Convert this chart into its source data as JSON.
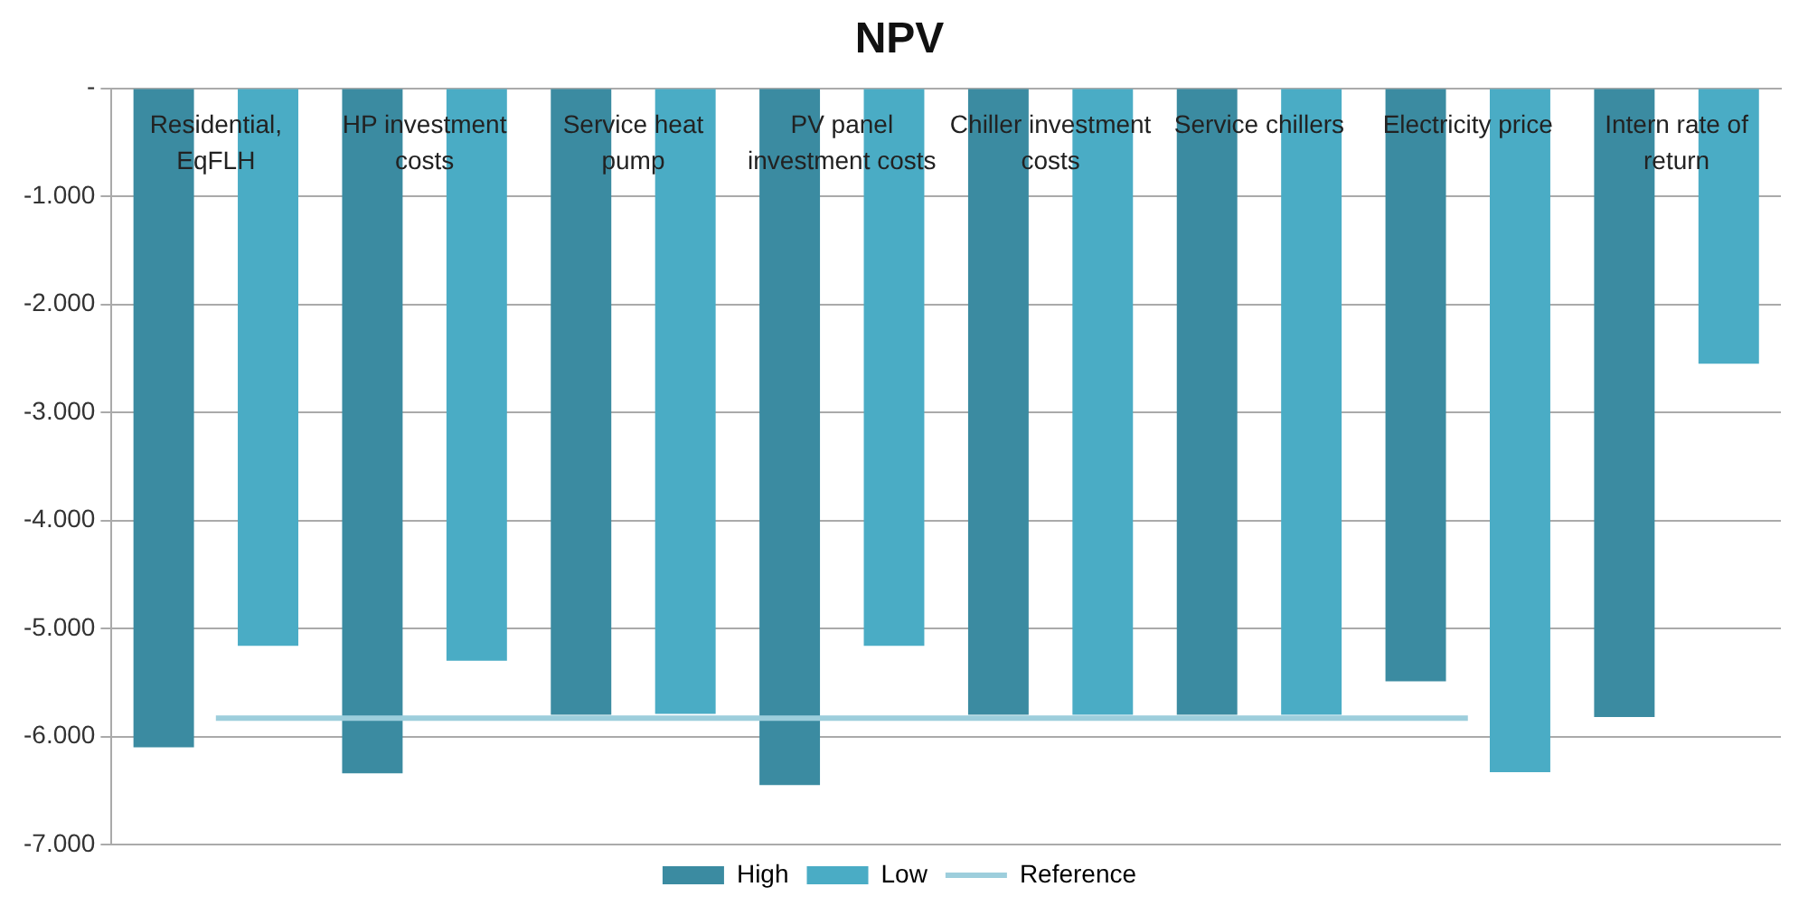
{
  "chart_data": {
    "type": "bar",
    "title": "NPV",
    "categories": [
      "Residential, EqFLH",
      "HP investment costs",
      "Service heat pump",
      "PV panel investment costs",
      "Chiller investment costs",
      "Service chillers",
      "Electricity price",
      "Intern rate of return"
    ],
    "series": [
      {
        "name": "High",
        "color": "#3b8ba1",
        "values": [
          -6100,
          -6340,
          -5800,
          -6450,
          -5800,
          -5800,
          -5490,
          -5820
        ]
      },
      {
        "name": "Low",
        "color": "#4aacc5",
        "values": [
          -5160,
          -5300,
          -5790,
          -5160,
          -5800,
          -5800,
          -6330,
          -2550
        ]
      },
      {
        "name": "Reference",
        "type": "line",
        "color": "#9dcedc",
        "values": [
          -5830,
          -5830,
          -5830,
          -5830,
          -5830,
          -5830,
          -5830,
          null
        ]
      }
    ],
    "ylim": [
      -7000,
      0
    ],
    "yticks": [
      {
        "value": 0,
        "label": "-"
      },
      {
        "value": -1000,
        "label": "-1.000"
      },
      {
        "value": -2000,
        "label": "-2.000"
      },
      {
        "value": -3000,
        "label": "-3.000"
      },
      {
        "value": -4000,
        "label": "-4.000"
      },
      {
        "value": -5000,
        "label": "-5.000"
      },
      {
        "value": -6000,
        "label": "-6.000"
      },
      {
        "value": -7000,
        "label": "-7.000"
      }
    ],
    "grid": "y",
    "legend": "bottom",
    "marker": "none"
  }
}
